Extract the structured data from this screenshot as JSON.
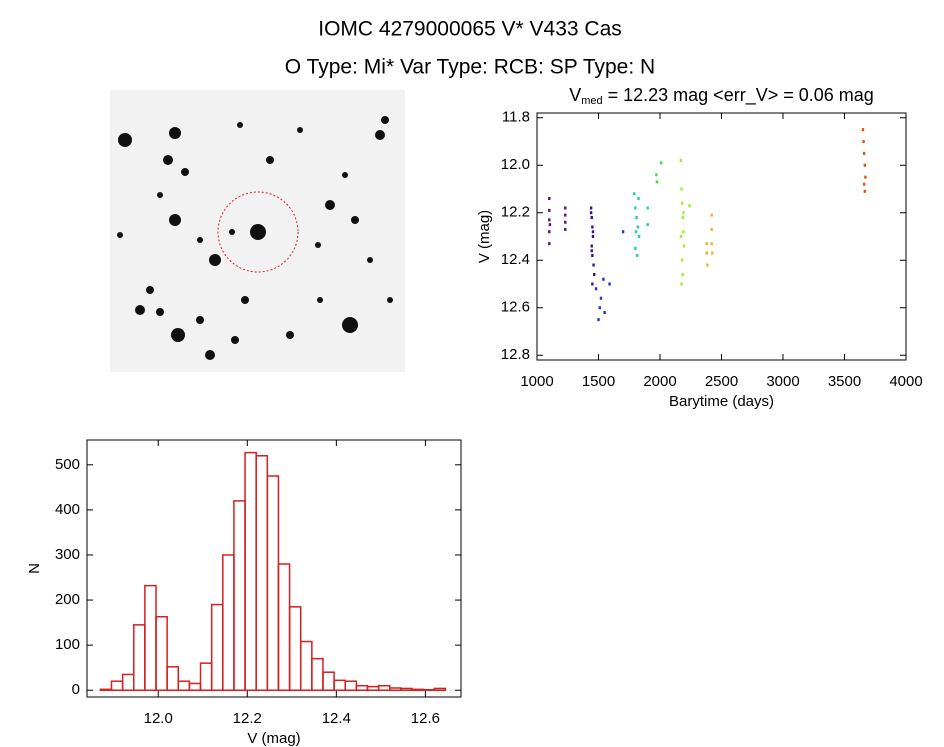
{
  "header": {
    "title": "IOMC 4279000065    V* V433 Cas",
    "subtitle": "O Type: Mi*  Var Type: RCB:  SP Type: N"
  },
  "chart_data": [
    {
      "type": "scatter",
      "title": [
        "V",
        "med",
        " = 12.23 mag <err_V> = 0.06 mag"
      ],
      "x_label": "Barytime (days)",
      "y_label": "V (mag)",
      "xlim": [
        1000,
        4000
      ],
      "xticks": [
        1000,
        1500,
        2000,
        2500,
        3000,
        3500,
        4000
      ],
      "ylim": [
        12.82,
        11.78
      ],
      "yticks": [
        11.8,
        {
          "value": 12,
          "label": "12.0"
        },
        12.2,
        12.4,
        12.6,
        12.8
      ],
      "series": [
        {
          "color": "#5a1070",
          "x": [
            1100,
            1100,
            1100,
            1100,
            1100,
            1105,
            1230,
            1230,
            1230,
            1230
          ],
          "values": [
            12.14,
            12.19,
            12.23,
            12.28,
            12.33,
            12.25,
            12.18,
            12.21,
            12.24,
            12.27
          ]
        },
        {
          "color": "#3a1090",
          "x": [
            1440,
            1445,
            1450,
            1455,
            1445,
            1450,
            1460,
            1440,
            1455,
            1465,
            1450,
            1445
          ],
          "values": [
            12.18,
            12.22,
            12.26,
            12.3,
            12.34,
            12.38,
            12.42,
            12.2,
            12.28,
            12.46,
            12.5,
            12.36
          ]
        },
        {
          "color": "#2030c0",
          "x": [
            1480,
            1500,
            1510,
            1520,
            1540,
            1550,
            1590,
            1700
          ],
          "values": [
            12.52,
            12.65,
            12.6,
            12.56,
            12.48,
            12.62,
            12.5,
            12.28
          ]
        },
        {
          "color": "#20d0a0",
          "x": [
            1790,
            1800,
            1810,
            1820,
            1830,
            1800,
            1815,
            1825,
            1805,
            1900,
            1900
          ],
          "values": [
            12.12,
            12.18,
            12.22,
            12.26,
            12.3,
            12.35,
            12.38,
            12.14,
            12.28,
            12.18,
            12.25
          ]
        },
        {
          "color": "#40e040",
          "x": [
            1970,
            1975,
            2010
          ],
          "values": [
            12.04,
            12.07,
            11.99
          ]
        },
        {
          "color": "#a0f020",
          "x": [
            2170,
            2175,
            2180,
            2185,
            2190,
            2195,
            2180,
            2185,
            2175,
            2190,
            2170,
            2240
          ],
          "values": [
            11.98,
            12.1,
            12.16,
            12.22,
            12.28,
            12.34,
            12.4,
            12.46,
            12.5,
            12.2,
            12.3,
            12.17
          ]
        },
        {
          "color": "#f0b020",
          "x": [
            2380,
            2380,
            2385,
            2420,
            2420,
            2420,
            2425
          ],
          "values": [
            12.33,
            12.37,
            12.42,
            12.21,
            12.27,
            12.33,
            12.37
          ]
        },
        {
          "color": "#e05010",
          "x": [
            3650,
            3655,
            3660,
            3665,
            3670,
            3660,
            3665
          ],
          "values": [
            11.85,
            11.9,
            11.95,
            12.0,
            12.05,
            12.08,
            12.11
          ]
        }
      ]
    },
    {
      "type": "histogram",
      "x_label": "V (mag)",
      "y_label": "N",
      "color": "#d42020",
      "xlim": [
        11.84,
        12.68
      ],
      "xticks": [
        {
          "value": 12,
          "label": "12.0"
        },
        12.2,
        12.4,
        12.6
      ],
      "ylim": [
        -15,
        555
      ],
      "yticks": [
        0,
        100,
        200,
        300,
        400,
        500
      ],
      "bins": [
        11.87,
        11.895,
        11.92,
        11.945,
        11.97,
        11.995,
        12.02,
        12.045,
        12.07,
        12.095,
        12.12,
        12.145,
        12.17,
        12.195,
        12.22,
        12.245,
        12.27,
        12.295,
        12.32,
        12.345,
        12.37,
        12.395,
        12.42,
        12.445,
        12.47,
        12.495,
        12.52,
        12.545,
        12.57,
        12.595,
        12.62,
        12.645
      ],
      "values": [
        2,
        20,
        35,
        145,
        232,
        163,
        52,
        20,
        15,
        60,
        190,
        300,
        420,
        527,
        520,
        475,
        280,
        185,
        108,
        70,
        40,
        22,
        20,
        10,
        8,
        10,
        5,
        4,
        2,
        1,
        4
      ]
    }
  ]
}
